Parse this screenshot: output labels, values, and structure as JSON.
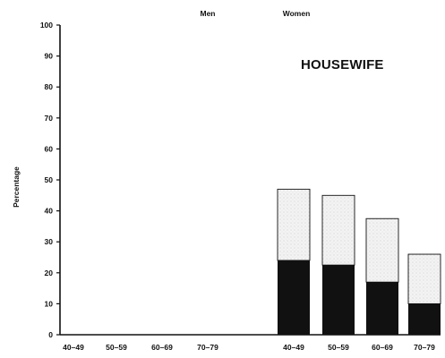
{
  "chart_data": {
    "type": "bar",
    "title": "",
    "annotation": "HOUSEWIFE",
    "ylabel": "Percentage",
    "xlabel": "",
    "ylim": [
      0,
      100
    ],
    "y_ticks": [
      "0",
      "10",
      "20",
      "30",
      "40",
      "50",
      "60",
      "70",
      "80",
      "90",
      "100"
    ],
    "groups": [
      "Men",
      "Women"
    ],
    "categories": [
      "40–49",
      "50–59",
      "60–69",
      "70–79",
      "40–49",
      "50–59",
      "60–69",
      "70–79"
    ],
    "group_of_category": [
      "Men",
      "Men",
      "Men",
      "Men",
      "Women",
      "Women",
      "Women",
      "Women"
    ],
    "series": [
      {
        "values": [
          0,
          0,
          0,
          0,
          24,
          22.5,
          17,
          10
        ]
      },
      {
        "values": [
          0,
          0,
          0,
          0,
          23,
          22.5,
          20.5,
          16
        ]
      }
    ],
    "bar_top_labels": [
      "",
      "",
      "",
      "",
      "",
      "",
      "",
      ""
    ],
    "colors": {
      "solid": "#111111",
      "stippled": "#e8e8e8",
      "axis": "#111111"
    }
  }
}
